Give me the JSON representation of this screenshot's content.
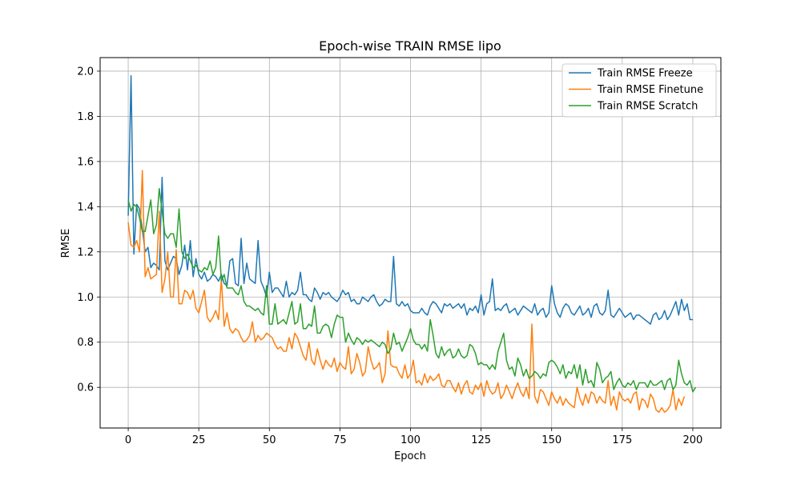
{
  "chart_data": {
    "type": "line",
    "title": "Epoch-wise TRAIN RMSE lipo",
    "xlabel": "Epoch",
    "ylabel": "RMSE",
    "xlim": [
      -9.95,
      209.95
    ],
    "ylim": [
      0.42,
      2.06
    ],
    "xticks": [
      0,
      25,
      50,
      75,
      100,
      125,
      150,
      175,
      200
    ],
    "yticks": [
      0.6,
      0.8,
      1.0,
      1.2,
      1.4,
      1.6,
      1.8,
      2.0
    ],
    "grid": true,
    "legend_position": "top-right",
    "series": [
      {
        "name": "Train RMSE Freeze",
        "color": "#1f77b4",
        "values": [
          1.36,
          1.98,
          1.19,
          1.41,
          1.39,
          1.3,
          1.2,
          1.22,
          1.13,
          1.15,
          1.14,
          1.12,
          1.53,
          1.16,
          1.12,
          1.15,
          1.18,
          1.17,
          1.1,
          1.14,
          1.23,
          1.12,
          1.25,
          1.09,
          1.17,
          1.1,
          1.08,
          1.11,
          1.07,
          1.08,
          1.1,
          1.09,
          1.07,
          1.1,
          1.06,
          1.05,
          1.16,
          1.17,
          1.06,
          1.05,
          1.26,
          1.06,
          1.15,
          1.08,
          1.07,
          1.06,
          1.25,
          1.07,
          1.04,
          1.0,
          1.11,
          1.02,
          1.04,
          1.04,
          1.02,
          1.0,
          1.07,
          1.0,
          1.02,
          1.01,
          1.03,
          1.11,
          1.01,
          1.01,
          0.99,
          0.98,
          1.04,
          1.02,
          0.99,
          1.02,
          1.01,
          1.02,
          1.0,
          0.99,
          0.98,
          1.0,
          1.03,
          1.01,
          1.02,
          0.98,
          0.99,
          0.97,
          0.97,
          1.0,
          0.99,
          0.98,
          1.0,
          1.01,
          0.98,
          0.96,
          0.97,
          0.99,
          0.98,
          0.98,
          1.18,
          0.97,
          0.96,
          0.98,
          0.96,
          0.97,
          0.94,
          0.93,
          0.93,
          0.93,
          0.95,
          0.93,
          0.92,
          0.96,
          0.98,
          0.97,
          0.95,
          0.93,
          0.97,
          0.96,
          0.97,
          0.95,
          0.96,
          0.97,
          0.95,
          0.97,
          0.92,
          0.95,
          0.94,
          0.96,
          0.93,
          1.01,
          0.92,
          0.97,
          0.98,
          1.08,
          0.94,
          0.95,
          0.94,
          0.96,
          0.97,
          0.93,
          0.94,
          0.95,
          0.92,
          0.94,
          0.96,
          0.95,
          0.94,
          0.93,
          0.97,
          0.92,
          0.94,
          0.95,
          0.91,
          0.93,
          1.05,
          0.97,
          0.93,
          0.91,
          0.95,
          0.97,
          0.96,
          0.93,
          0.92,
          0.94,
          0.96,
          0.92,
          0.93,
          0.95,
          0.91,
          0.96,
          0.97,
          0.93,
          0.92,
          0.94,
          1.03,
          0.92,
          0.91,
          0.93,
          0.95,
          0.93,
          0.91,
          0.92,
          0.93,
          0.9,
          0.92,
          0.92,
          0.91,
          0.9,
          0.89,
          0.88,
          0.92,
          0.93,
          0.9,
          0.91,
          0.94,
          0.9,
          0.92,
          0.95,
          0.98,
          0.92,
          0.99,
          0.94,
          0.97,
          0.9,
          0.9
        ]
      },
      {
        "name": "Train RMSE Finetune",
        "color": "#ff7f0e",
        "values": [
          1.33,
          1.23,
          1.22,
          1.25,
          1.2,
          1.56,
          1.09,
          1.13,
          1.08,
          1.09,
          1.1,
          1.38,
          1.02,
          1.08,
          1.2,
          1.0,
          1.0,
          1.21,
          0.97,
          0.97,
          1.03,
          1.02,
          0.99,
          1.03,
          0.95,
          0.93,
          0.98,
          1.03,
          0.91,
          0.89,
          0.91,
          0.94,
          0.9,
          1.08,
          0.87,
          0.93,
          0.86,
          0.84,
          0.86,
          0.85,
          0.82,
          0.8,
          0.81,
          0.83,
          0.89,
          0.8,
          0.83,
          0.81,
          0.82,
          0.84,
          0.83,
          0.82,
          0.79,
          0.77,
          0.78,
          0.76,
          0.76,
          0.82,
          0.77,
          0.84,
          0.82,
          0.78,
          0.74,
          0.72,
          0.8,
          0.72,
          0.7,
          0.77,
          0.72,
          0.68,
          0.72,
          0.7,
          0.69,
          0.73,
          0.67,
          0.71,
          0.69,
          0.68,
          0.78,
          0.66,
          0.68,
          0.75,
          0.71,
          0.65,
          0.67,
          0.78,
          0.72,
          0.68,
          0.69,
          0.71,
          0.62,
          0.66,
          0.85,
          0.7,
          0.69,
          0.69,
          0.66,
          0.64,
          0.7,
          0.64,
          0.66,
          0.72,
          0.62,
          0.63,
          0.61,
          0.66,
          0.62,
          0.65,
          0.63,
          0.64,
          0.66,
          0.61,
          0.6,
          0.63,
          0.63,
          0.6,
          0.58,
          0.62,
          0.57,
          0.61,
          0.63,
          0.58,
          0.57,
          0.61,
          0.59,
          0.62,
          0.56,
          0.63,
          0.59,
          0.57,
          0.58,
          0.62,
          0.55,
          0.57,
          0.61,
          0.58,
          0.55,
          0.59,
          0.62,
          0.58,
          0.56,
          0.6,
          0.55,
          0.88,
          0.56,
          0.53,
          0.59,
          0.58,
          0.55,
          0.52,
          0.58,
          0.55,
          0.53,
          0.56,
          0.52,
          0.55,
          0.53,
          0.52,
          0.51,
          0.6,
          0.55,
          0.52,
          0.57,
          0.53,
          0.58,
          0.57,
          0.53,
          0.56,
          0.54,
          0.53,
          0.63,
          0.52,
          0.56,
          0.5,
          0.58,
          0.55,
          0.54,
          0.55,
          0.53,
          0.57,
          0.58,
          0.5,
          0.55,
          0.54,
          0.51,
          0.57,
          0.55,
          0.5,
          0.49,
          0.51,
          0.49,
          0.5,
          0.52,
          0.59,
          0.5,
          0.55,
          0.52,
          0.56
        ]
      },
      {
        "name": "Train RMSE Scratch",
        "color": "#2ca02c",
        "values": [
          1.43,
          1.38,
          1.41,
          1.4,
          1.35,
          1.29,
          1.29,
          1.36,
          1.43,
          1.28,
          1.32,
          1.48,
          1.38,
          1.28,
          1.26,
          1.28,
          1.28,
          1.22,
          1.39,
          1.2,
          1.17,
          1.19,
          1.16,
          1.13,
          1.14,
          1.12,
          1.11,
          1.13,
          1.12,
          1.16,
          1.1,
          1.13,
          1.27,
          1.07,
          1.1,
          1.04,
          1.04,
          1.04,
          1.02,
          1.01,
          1.05,
          0.98,
          0.96,
          0.96,
          0.95,
          0.94,
          0.95,
          0.93,
          0.92,
          1.05,
          0.88,
          0.88,
          0.97,
          0.88,
          0.89,
          0.9,
          0.88,
          0.93,
          0.98,
          0.88,
          0.89,
          0.97,
          0.86,
          0.86,
          0.88,
          0.87,
          0.96,
          0.84,
          0.84,
          0.87,
          0.88,
          0.87,
          0.82,
          0.88,
          0.92,
          0.91,
          0.91,
          0.8,
          0.84,
          0.81,
          0.79,
          0.82,
          0.81,
          0.79,
          0.81,
          0.8,
          0.81,
          0.8,
          0.79,
          0.78,
          0.8,
          0.79,
          0.75,
          0.77,
          0.84,
          0.79,
          0.8,
          0.76,
          0.79,
          0.82,
          0.86,
          0.81,
          0.79,
          0.79,
          0.77,
          0.79,
          0.76,
          0.9,
          0.83,
          0.75,
          0.73,
          0.78,
          0.74,
          0.76,
          0.77,
          0.73,
          0.74,
          0.77,
          0.74,
          0.73,
          0.74,
          0.79,
          0.78,
          0.75,
          0.7,
          0.71,
          0.7,
          0.7,
          0.68,
          0.7,
          0.68,
          0.76,
          0.8,
          0.84,
          0.72,
          0.68,
          0.69,
          0.65,
          0.73,
          0.7,
          0.65,
          0.68,
          0.64,
          0.65,
          0.67,
          0.66,
          0.64,
          0.66,
          0.65,
          0.71,
          0.72,
          0.71,
          0.69,
          0.66,
          0.7,
          0.64,
          0.67,
          0.66,
          0.7,
          0.64,
          0.7,
          0.61,
          0.68,
          0.62,
          0.63,
          0.6,
          0.71,
          0.68,
          0.62,
          0.64,
          0.65,
          0.67,
          0.59,
          0.62,
          0.64,
          0.61,
          0.6,
          0.62,
          0.61,
          0.63,
          0.59,
          0.62,
          0.62,
          0.62,
          0.6,
          0.63,
          0.61,
          0.61,
          0.62,
          0.63,
          0.59,
          0.63,
          0.64,
          0.59,
          0.61,
          0.72,
          0.66,
          0.62,
          0.61,
          0.63,
          0.58,
          0.6
        ]
      }
    ]
  }
}
